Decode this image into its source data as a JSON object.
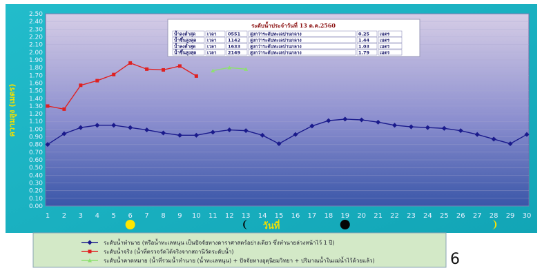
{
  "chart_data": {
    "type": "line",
    "title": "",
    "ylabel": "ความสูง (เมตร)",
    "xlabel": "วันที่",
    "ylim": [
      0,
      2.5
    ],
    "y_ticks": [
      "0.00",
      "0.10",
      "0.20",
      "0.30",
      "0.40",
      "0.50",
      "0.60",
      "0.70",
      "0.80",
      "0.90",
      "1.00",
      "1.10",
      "1.20",
      "1.30",
      "1.40",
      "1.50",
      "1.60",
      "1.70",
      "1.80",
      "1.90",
      "2.00",
      "2.10",
      "2.20",
      "2.30",
      "2.40",
      "2.50"
    ],
    "x": [
      1,
      2,
      3,
      4,
      5,
      6,
      7,
      8,
      9,
      10,
      11,
      12,
      13,
      14,
      15,
      16,
      17,
      18,
      19,
      20,
      21,
      22,
      23,
      24,
      25,
      26,
      27,
      28,
      29,
      30
    ],
    "grid": true,
    "series": [
      {
        "name": "ระดับน้ำทำนาย (หรือน้ำทะเลหนุน เป็นปัจจัยทางดาราศาสตร์อย่างเดียว ซึ่งทำนายล่วงหน้าไว้ 1 ปี)",
        "color": "#1a1a8c",
        "x": [
          1,
          2,
          3,
          4,
          5,
          6,
          7,
          8,
          9,
          10,
          11,
          12,
          13,
          14,
          15,
          16,
          17,
          18,
          19,
          20,
          21,
          22,
          23,
          24,
          25,
          26,
          27,
          28,
          29,
          30
        ],
        "values": [
          0.8,
          0.94,
          1.02,
          1.05,
          1.05,
          1.02,
          0.99,
          0.95,
          0.92,
          0.92,
          0.96,
          0.99,
          0.98,
          0.92,
          0.81,
          0.93,
          1.04,
          1.11,
          1.13,
          1.12,
          1.09,
          1.05,
          1.03,
          1.02,
          1.01,
          0.98,
          0.93,
          0.87,
          0.81,
          0.93
        ]
      },
      {
        "name": "ระดับน้ำจริง (น้ำที่ตรวจวัดได้จริงจากสถานีวัดระดับน้ำ)",
        "color": "#e02020",
        "x": [
          1,
          2,
          3,
          4,
          5,
          6,
          7,
          8,
          9,
          10
        ],
        "values": [
          1.3,
          1.26,
          1.57,
          1.63,
          1.71,
          1.86,
          1.78,
          1.77,
          1.82,
          1.69
        ]
      },
      {
        "name": "ระดับน้ำคาดหมาย (น้ำที่รวมน้ำทำนาย (น้ำทะเลหนุน) + ปัจจัยทางอุตุนิยมวิทยา + ปริมาณน้ำในแม่น้ำไว้ด้วยแล้ว)",
        "color": "#8ee070",
        "x": [
          11,
          12,
          13
        ],
        "values": [
          1.76,
          1.8,
          1.78
        ]
      }
    ],
    "moon_phases": [
      {
        "day": 6,
        "phase": "full-moon"
      },
      {
        "day": 13,
        "phase": "last-quarter"
      },
      {
        "day": 19,
        "phase": "new-moon"
      },
      {
        "day": 28,
        "phase": "first-quarter"
      }
    ],
    "info_box": {
      "title": "ระดับน้ำประจำวันที่ 13 ต.ค.2560",
      "rows": [
        [
          "น้ำลงต่ำสุด",
          "เวลา",
          "0551",
          "สูงกว่าระดับทะเลปานกลาง",
          "0.25",
          "เมตร"
        ],
        [
          "น้ำขึ้นสูงสุด",
          "เวลา",
          "1142",
          "สูงกว่าระดับทะเลปานกลาง",
          "1.44",
          "เมตร"
        ],
        [
          "น้ำลงต่ำสุด",
          "เวลา",
          "1633",
          "สูงกว่าระดับทะเลปานกลาง",
          "1.03",
          "เมตร"
        ],
        [
          "น้ำขึ้นสูงสุด",
          "เวลา",
          "2149",
          "สูงกว่าระดับทะเลปานกลาง",
          "1.79",
          "เมตร"
        ]
      ]
    }
  },
  "page_number": "6",
  "colors": {
    "background": "#1bb6c4",
    "plot_top": "#c9bedf",
    "plot_bottom": "#4a5fa8",
    "legend_bg": "#cfe8c0"
  }
}
